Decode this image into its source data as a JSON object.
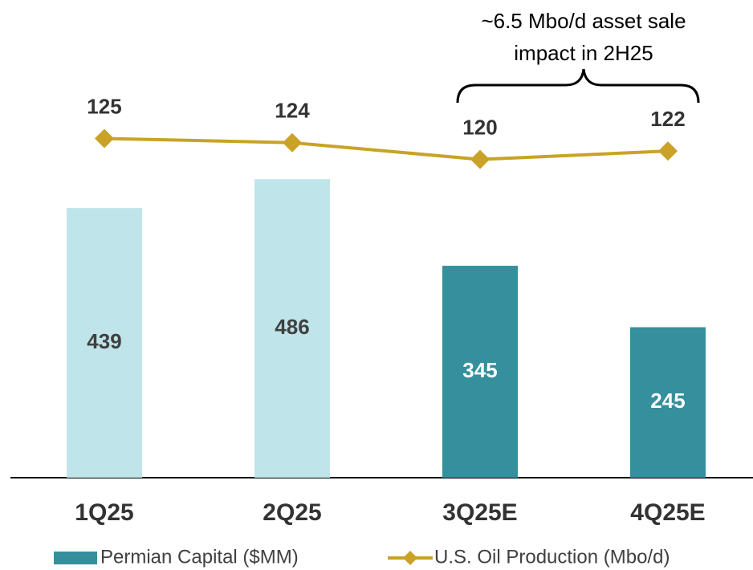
{
  "chart_data": {
    "type": "bar",
    "categories": [
      "1Q25",
      "2Q25",
      "3Q25E",
      "4Q25E"
    ],
    "series": [
      {
        "name": "Permian Capital ($MM)",
        "type": "bar",
        "color": "#358f9d",
        "colors": [
          "#bfe4ea",
          "#bfe4ea",
          "#358f9d",
          "#358f9d"
        ],
        "values": [
          439,
          486,
          345,
          245
        ]
      },
      {
        "name": "U.S. Oil Production (Mbo/d)",
        "type": "line",
        "axis": "y2",
        "color": "#c9a227",
        "values": [
          125,
          124,
          120,
          122
        ]
      }
    ],
    "ylim": [
      0,
      600
    ],
    "y2lim": [
      44,
      132
    ],
    "annotation": [
      "~6.5 Mbo/d asset sale",
      "impact in 2H25"
    ],
    "grid": false
  }
}
